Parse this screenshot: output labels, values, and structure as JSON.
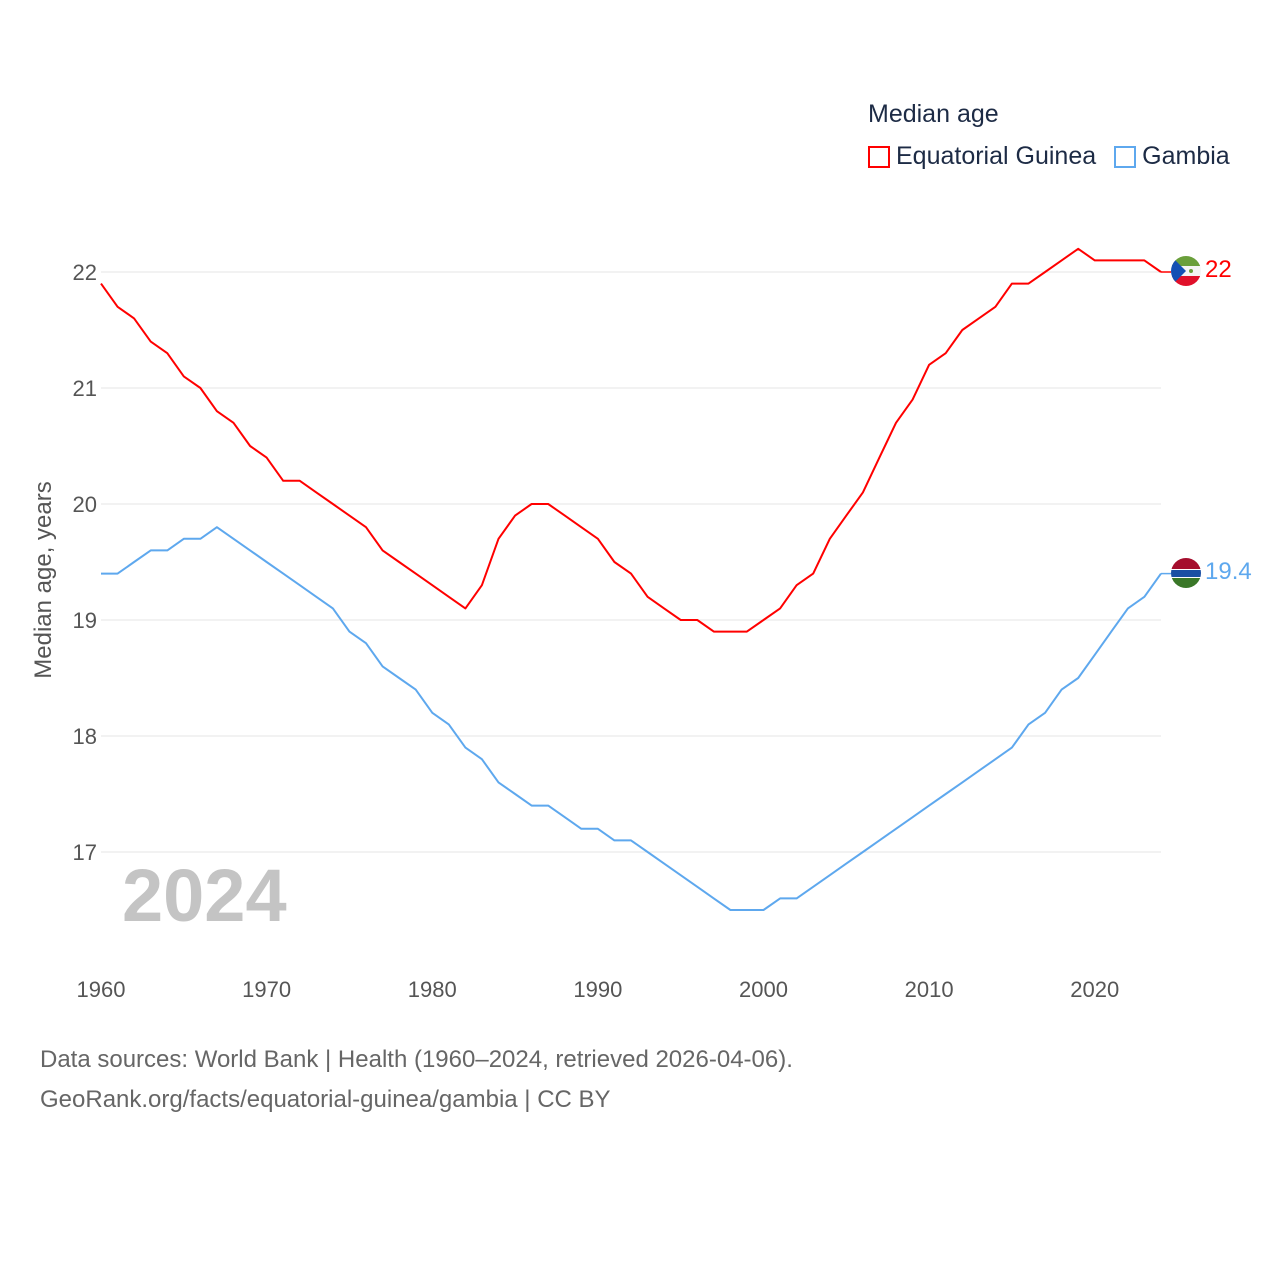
{
  "chart_data": {
    "type": "line",
    "title": "Median age",
    "ylabel": "Median age, years",
    "xlabel": "",
    "xlim": [
      1960,
      2024
    ],
    "ylim": [
      16.2,
      22.4
    ],
    "x_ticks": [
      1960,
      1970,
      1980,
      1990,
      2000,
      2010,
      2020
    ],
    "y_ticks": [
      17,
      18,
      19,
      20,
      21,
      22
    ],
    "grid": true,
    "legend_placement": "top-right",
    "year_label": "2024",
    "x": [
      1960,
      1961,
      1962,
      1963,
      1964,
      1965,
      1966,
      1967,
      1968,
      1969,
      1970,
      1971,
      1972,
      1973,
      1974,
      1975,
      1976,
      1977,
      1978,
      1979,
      1980,
      1981,
      1982,
      1983,
      1984,
      1985,
      1986,
      1987,
      1988,
      1989,
      1990,
      1991,
      1992,
      1993,
      1994,
      1995,
      1996,
      1997,
      1998,
      1999,
      2000,
      2001,
      2002,
      2003,
      2004,
      2005,
      2006,
      2007,
      2008,
      2009,
      2010,
      2011,
      2012,
      2013,
      2014,
      2015,
      2016,
      2017,
      2018,
      2019,
      2020,
      2021,
      2022,
      2023,
      2024
    ],
    "series": [
      {
        "name": "Equatorial Guinea",
        "color": "#ff0000",
        "end_label": "22",
        "values": [
          21.9,
          21.7,
          21.6,
          21.4,
          21.3,
          21.1,
          21.0,
          20.8,
          20.7,
          20.5,
          20.4,
          20.2,
          20.2,
          20.1,
          20.0,
          19.9,
          19.8,
          19.6,
          19.5,
          19.4,
          19.3,
          19.2,
          19.1,
          19.3,
          19.7,
          19.9,
          20.0,
          20.0,
          19.9,
          19.8,
          19.7,
          19.5,
          19.4,
          19.2,
          19.1,
          19.0,
          19.0,
          18.9,
          18.9,
          18.9,
          19.0,
          19.1,
          19.3,
          19.4,
          19.7,
          19.9,
          20.1,
          20.4,
          20.7,
          20.9,
          21.2,
          21.3,
          21.5,
          21.6,
          21.7,
          21.9,
          21.9,
          22.0,
          22.1,
          22.2,
          22.1,
          22.1,
          22.1,
          22.1,
          22.0
        ]
      },
      {
        "name": "Gambia",
        "color": "#5ea8ee",
        "end_label": "19.4",
        "values": [
          19.4,
          19.4,
          19.5,
          19.6,
          19.6,
          19.7,
          19.7,
          19.8,
          19.7,
          19.6,
          19.5,
          19.4,
          19.3,
          19.2,
          19.1,
          18.9,
          18.8,
          18.6,
          18.5,
          18.4,
          18.2,
          18.1,
          17.9,
          17.8,
          17.6,
          17.5,
          17.4,
          17.4,
          17.3,
          17.2,
          17.2,
          17.1,
          17.1,
          17.0,
          16.9,
          16.8,
          16.7,
          16.6,
          16.5,
          16.5,
          16.5,
          16.6,
          16.6,
          16.7,
          16.8,
          16.9,
          17.0,
          17.1,
          17.2,
          17.3,
          17.4,
          17.5,
          17.6,
          17.7,
          17.8,
          17.9,
          18.1,
          18.2,
          18.4,
          18.5,
          18.7,
          18.9,
          19.1,
          19.2,
          19.4
        ]
      }
    ]
  },
  "source": {
    "line1": "Data sources: World Bank | Health (1960–2024, retrieved 2026-04-06).",
    "line2": "GeoRank.org/facts/equatorial-guinea/gambia | CC BY"
  }
}
